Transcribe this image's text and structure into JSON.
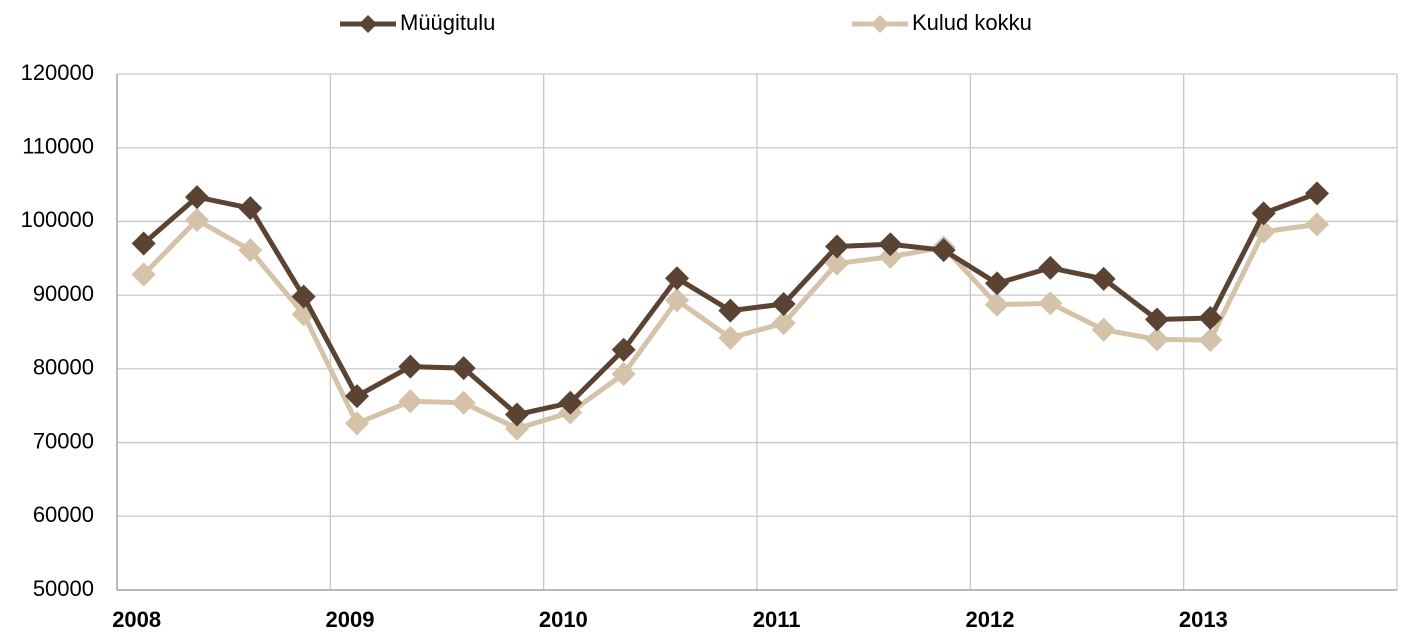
{
  "chart_data": {
    "type": "line",
    "categories": [
      "2008",
      null,
      null,
      null,
      "2009",
      null,
      null,
      null,
      "2010",
      null,
      null,
      null,
      "2011",
      null,
      null,
      null,
      "2012",
      null,
      null,
      null,
      "2013",
      null,
      null,
      null
    ],
    "series": [
      {
        "name": "Müügitulu",
        "color": "#5a4332",
        "values": [
          97000,
          103300,
          101800,
          89800,
          76300,
          80300,
          80100,
          73800,
          75400,
          82600,
          92300,
          87900,
          88800,
          96600,
          96900,
          96100,
          91600,
          93700,
          92200,
          86700,
          86900,
          101100,
          103800,
          null
        ]
      },
      {
        "name": "Kulud kokku",
        "color": "#d4c3a9",
        "values": [
          92800,
          100200,
          96100,
          87400,
          72600,
          75600,
          75400,
          71900,
          74100,
          79300,
          89300,
          84200,
          86200,
          94300,
          95200,
          96500,
          88700,
          88900,
          85300,
          84000,
          83900,
          98600,
          99600,
          null
        ]
      }
    ],
    "ylim": [
      50000,
      120000
    ],
    "yticks": [
      50000,
      60000,
      70000,
      80000,
      90000,
      100000,
      110000,
      120000
    ],
    "grid": true
  }
}
